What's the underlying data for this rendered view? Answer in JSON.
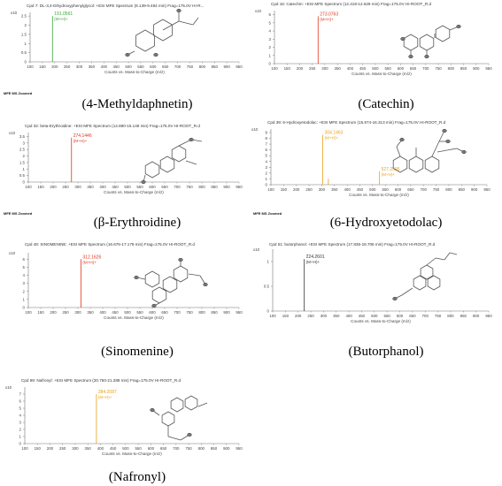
{
  "figure": {
    "mfe_label": "MFE MS Zoomed",
    "colors": {
      "green": "#3aa43a",
      "orange": "#e8a21a",
      "red": "#e0341c",
      "black": "#333333",
      "axis": "#777777",
      "structure": "#555555"
    }
  },
  "chart_data": [
    {
      "type": "bar",
      "id": "p1",
      "caption": "(4-Methyldaphnetin)",
      "title": "Cpd 7: DL-3,4-Dihydroxyphenylglycol: +ESI MFE Spectrum (9.139-9.484 min) Frag=175.0V HI-R...",
      "scale": "x10",
      "xlabel": "Counts vs. Mass-to-Charge (m/z)",
      "xticks": [
        "100",
        "150",
        "200",
        "250",
        "300",
        "350",
        "400",
        "450",
        "500",
        "550",
        "600",
        "650",
        "700",
        "750",
        "800",
        "850",
        "900",
        "950"
      ],
      "yticks": [
        "0",
        "0.5",
        "1",
        "1.5",
        "2",
        "2.5"
      ],
      "xlim": [
        100,
        950
      ],
      "ylim": [
        0,
        2.7
      ],
      "peaks": [
        {
          "x": 191.0561,
          "y": 2.5,
          "label": "191.0561",
          "adduct": "(M+H)+",
          "color": "green"
        }
      ],
      "show_mfe": true
    },
    {
      "type": "bar",
      "id": "p2",
      "caption": "(Catechin)",
      "title": "Cpd 16: Catechin: +ESI MFE Spectrum (12.418-12.629 min) Frag=175.0V HI-ROOT_R.d",
      "scale": "x10",
      "xlabel": "Counts vs. Mass-to-Charge (m/z)",
      "xticks": [
        "100",
        "150",
        "200",
        "250",
        "300",
        "350",
        "400",
        "450",
        "500",
        "550",
        "600",
        "650",
        "700",
        "750",
        "800",
        "850",
        "900",
        "950"
      ],
      "yticks": [
        "0",
        "1",
        "2",
        "3",
        "4",
        "5",
        "6"
      ],
      "xlim": [
        100,
        950
      ],
      "ylim": [
        0,
        6.5
      ],
      "peaks": [
        {
          "x": 273.0763,
          "y": 5.8,
          "label": "273.0763",
          "adduct": "(M+H)+",
          "color": "red"
        }
      ],
      "show_mfe": false
    },
    {
      "type": "bar",
      "id": "p3",
      "caption": "(β-Erythroidine)",
      "title": "Cpd 32: beta-Erythroidine: +ESI MFE Spectrum (14.890-15.149 min) Frag=175.0V HI-ROOT_R.d",
      "scale": "x10",
      "xlabel": "Counts vs. Mass-to-Charge (m/z)",
      "xticks": [
        "100",
        "150",
        "200",
        "250",
        "300",
        "350",
        "400",
        "450",
        "500",
        "550",
        "600",
        "650",
        "700",
        "750",
        "800",
        "850",
        "900",
        "950"
      ],
      "yticks": [
        "0",
        "0.5",
        "1",
        "1.5",
        "2",
        "2.5",
        "3",
        "3.5"
      ],
      "xlim": [
        100,
        950
      ],
      "ylim": [
        0,
        3.8
      ],
      "peaks": [
        {
          "x": 274.1446,
          "y": 3.4,
          "label": "274.1446",
          "adduct": "(M+H)+",
          "color": "red"
        }
      ],
      "show_mfe": true
    },
    {
      "type": "bar",
      "id": "p4",
      "caption": "(6-Hydroxyetodolac)",
      "title": "Cpd 39: 6-Hydroxyetodolac: +ESI MFE Spectrum (15.974-16.313 min) Frag=175.0V HI-ROOT_R.d",
      "scale": "x10",
      "xlabel": "Counts vs. Mass-to-Charge (m/z)",
      "xticks": [
        "100",
        "150",
        "200",
        "250",
        "300",
        "350",
        "400",
        "450",
        "500",
        "550",
        "600",
        "650",
        "700",
        "750",
        "800",
        "850",
        "900",
        "950"
      ],
      "yticks": [
        "0",
        "1",
        "2",
        "3",
        "4",
        "5",
        "6",
        "7",
        "8",
        "9"
      ],
      "xlim": [
        100,
        950
      ],
      "ylim": [
        0,
        9.6
      ],
      "peaks": [
        {
          "x": 304.1463,
          "y": 8.6,
          "label": "304.1463",
          "adduct": "(M+H)+",
          "color": "orange"
        },
        {
          "x": 326.0,
          "y": 1.0,
          "label": "",
          "adduct": "",
          "color": "orange"
        },
        {
          "x": 527.2595,
          "y": 2.3,
          "label": "527.2595",
          "adduct": "(M+H)+",
          "color": "orange"
        }
      ],
      "show_mfe": true
    },
    {
      "type": "bar",
      "id": "p5",
      "caption": "(Sinomenine)",
      "title": "Cpd 48: SINOMENINE: +ESI MFE Spectrum (16.676-17.179 min) Frag=175.0V HI-ROOT_R.d",
      "scale": "x10",
      "xlabel": "Counts vs. Mass-to-Charge (m/z)",
      "xticks": [
        "100",
        "150",
        "200",
        "250",
        "300",
        "350",
        "400",
        "450",
        "500",
        "550",
        "600",
        "650",
        "700",
        "750",
        "800",
        "850",
        "900",
        "950"
      ],
      "yticks": [
        "0",
        "1",
        "2",
        "3",
        "4",
        "5",
        "6"
      ],
      "xlim": [
        100,
        950
      ],
      "ylim": [
        0,
        6.8
      ],
      "peaks": [
        {
          "x": 312.1626,
          "y": 6.0,
          "label": "312.1626",
          "adduct": "(M+H)+",
          "color": "red"
        }
      ],
      "show_mfe": false
    },
    {
      "type": "bar",
      "id": "p6",
      "caption": "(Butorphanol)",
      "title": "Cpd 51: butorphanol: +ESI MFE Spectrum (17.836-18.706 min) Frag=175.0V HI-ROOT_R.d",
      "scale": "x10",
      "xlabel": "Counts vs. Mass-to-Charge (m/z)",
      "xticks": [
        "100",
        "150",
        "200",
        "250",
        "300",
        "350",
        "400",
        "450",
        "500",
        "550",
        "600",
        "650",
        "700",
        "750",
        "800",
        "850",
        "900",
        "950"
      ],
      "yticks": [
        "0",
        "0.5",
        "1"
      ],
      "xlim": [
        100,
        950
      ],
      "ylim": [
        0,
        1.25
      ],
      "peaks": [
        {
          "x": 224.2601,
          "y": 1.05,
          "label": "224.2601",
          "adduct": "(M+H)+",
          "color": "black"
        }
      ],
      "show_mfe": false
    },
    {
      "type": "bar",
      "id": "p7",
      "caption": "(Nafronyl)",
      "title": "Cpd 69: Nafronyl: +ESI MFE Spectrum (20.750-21.288 min) Frag=175.0V HI-ROOT_R.d",
      "scale": "x10",
      "xlabel": "Counts vs. Mass-to-Charge (m/z)",
      "xticks": [
        "100",
        "150",
        "200",
        "250",
        "300",
        "350",
        "400",
        "450",
        "500",
        "550",
        "600",
        "650",
        "700",
        "750",
        "800",
        "850",
        "900",
        "950"
      ],
      "yticks": [
        "0",
        "1",
        "2",
        "3",
        "4",
        "5",
        "6",
        "7"
      ],
      "xlim": [
        100,
        950
      ],
      "ylim": [
        0,
        8
      ],
      "peaks": [
        {
          "x": 384.2087,
          "y": 7.0,
          "label": "384.2087",
          "adduct": "(M+H)+",
          "color": "orange"
        }
      ],
      "show_mfe": false
    }
  ]
}
